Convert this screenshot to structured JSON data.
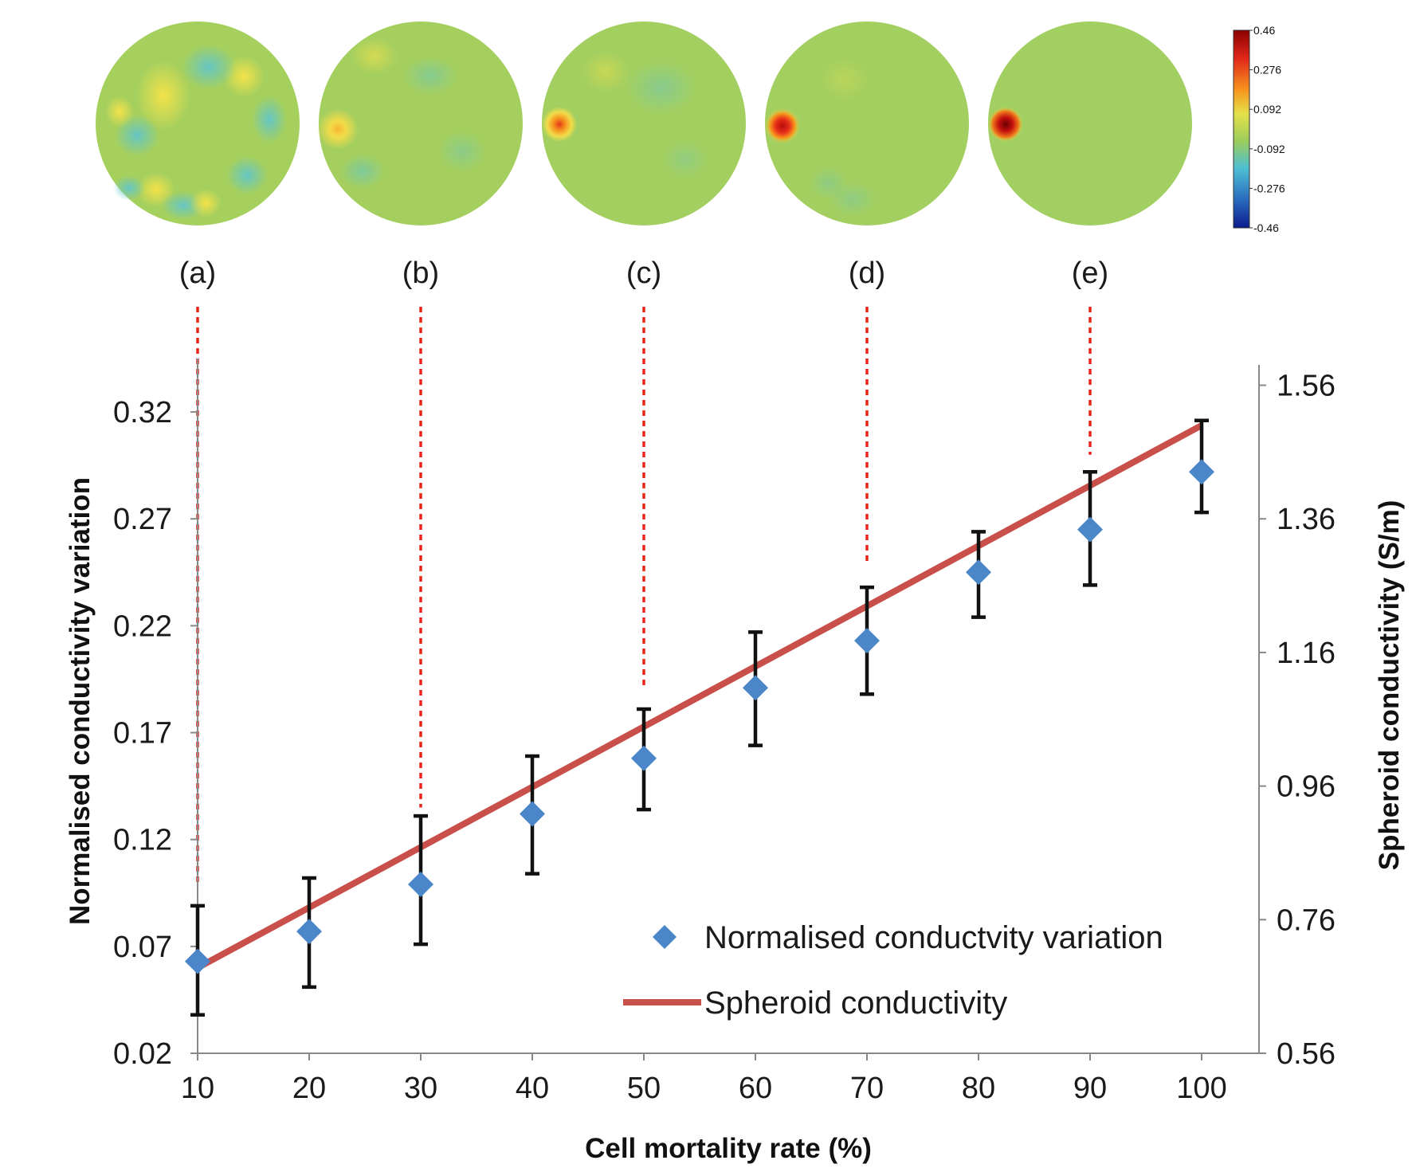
{
  "chart_data": {
    "type": "scatter",
    "title": "",
    "xlabel": "Cell mortality rate (%)",
    "ylabel": "Normalised conductivity  variation",
    "y2label": "Spheroid conductivity (S/m)",
    "x": [
      10,
      20,
      30,
      40,
      50,
      60,
      70,
      80,
      90,
      100
    ],
    "x_ticks": [
      "10",
      "20",
      "30",
      "40",
      "50",
      "60",
      "70",
      "80",
      "90",
      "100"
    ],
    "xlim": [
      10,
      100
    ],
    "ylim": [
      0.02,
      0.345
    ],
    "y_ticks": [
      "0.02",
      "0.07",
      "0.12",
      "0.17",
      "0.22",
      "0.27",
      "0.32"
    ],
    "y2lim": [
      0.56,
      1.6
    ],
    "y2_ticks": [
      "0.56",
      "0.76",
      "0.96",
      "1.16",
      "1.36",
      "1.56"
    ],
    "series": [
      {
        "name": "Normalised conductvity variation",
        "axis": "left",
        "marker": "diamond",
        "color": "#4a86c8",
        "values": [
          0.063,
          0.077,
          0.099,
          0.132,
          0.158,
          0.191,
          0.213,
          0.245,
          0.265,
          0.292
        ],
        "err_low": [
          0.038,
          0.051,
          0.071,
          0.104,
          0.134,
          0.164,
          0.188,
          0.224,
          0.239,
          0.273
        ],
        "err_high": [
          0.089,
          0.102,
          0.131,
          0.159,
          0.181,
          0.217,
          0.238,
          0.264,
          0.292,
          0.316
        ]
      },
      {
        "name": "Spheroid conductivity",
        "axis": "right",
        "type": "line",
        "color": "#c9504a",
        "x": [
          10,
          100
        ],
        "values": [
          0.688,
          1.5
        ]
      }
    ],
    "reconstruction_panels": [
      {
        "label": "(a)",
        "x": 10,
        "guide_y": 0.1
      },
      {
        "label": "(b)",
        "x": 30,
        "guide_y": 0.135
      },
      {
        "label": "(c)",
        "x": 50,
        "guide_y": 0.19
      },
      {
        "label": "(d)",
        "x": 70,
        "guide_y": 0.25
      },
      {
        "label": "(e)",
        "x": 90,
        "guide_y": 0.3
      }
    ],
    "colorbar": {
      "ticks": [
        "0.46",
        "0.276",
        "0.092",
        "-0.092",
        "-0.276",
        "-0.46"
      ],
      "colors": [
        "#8b0000",
        "#e0261a",
        "#f7941d",
        "#e5e04a",
        "#9ccd5a",
        "#4dbfd3",
        "#2b6fc0",
        "#0b1a8c"
      ]
    }
  }
}
